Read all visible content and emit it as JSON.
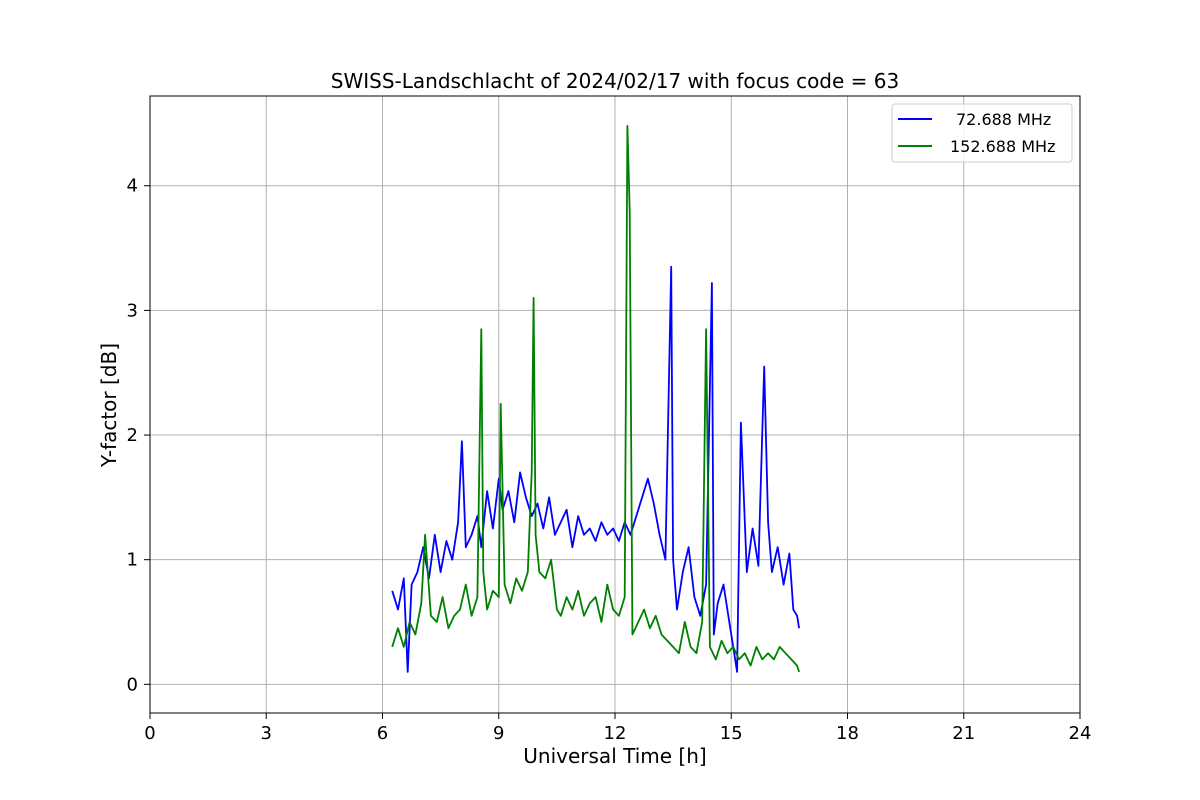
{
  "chart_data": {
    "type": "line",
    "title": "SWISS-Landschlacht of 2024/02/17 with focus code = 63",
    "xlabel": "Universal Time [h]",
    "ylabel": "Y-factor [dB]",
    "xlim": [
      0,
      24
    ],
    "ylim": [
      -0.23,
      4.72
    ],
    "x_ticks": [
      0,
      3,
      6,
      9,
      12,
      15,
      18,
      21,
      24
    ],
    "y_ticks": [
      0,
      1,
      2,
      3,
      4
    ],
    "grid": true,
    "legend_position": "top-right",
    "series": [
      {
        "name": "72.688 MHz",
        "color": "#0000ff",
        "x": [
          6.25,
          6.4,
          6.55,
          6.65,
          6.75,
          6.9,
          7.05,
          7.2,
          7.35,
          7.5,
          7.65,
          7.8,
          7.95,
          8.05,
          8.15,
          8.3,
          8.45,
          8.55,
          8.7,
          8.85,
          9.0,
          9.1,
          9.25,
          9.4,
          9.55,
          9.7,
          9.85,
          10.0,
          10.15,
          10.3,
          10.45,
          10.6,
          10.75,
          10.9,
          11.05,
          11.2,
          11.35,
          11.5,
          11.65,
          11.8,
          11.95,
          12.1,
          12.25,
          12.4,
          12.55,
          12.7,
          12.85,
          13.0,
          13.15,
          13.3,
          13.45,
          13.5,
          13.6,
          13.75,
          13.9,
          14.05,
          14.2,
          14.35,
          14.5,
          14.55,
          14.65,
          14.8,
          14.95,
          15.05,
          15.15,
          15.25,
          15.4,
          15.55,
          15.7,
          15.85,
          15.95,
          16.05,
          16.2,
          16.35,
          16.5,
          16.6,
          16.7,
          16.75
        ],
        "y": [
          0.75,
          0.6,
          0.85,
          0.1,
          0.8,
          0.9,
          1.1,
          0.85,
          1.2,
          0.9,
          1.15,
          1.0,
          1.3,
          1.95,
          1.1,
          1.2,
          1.35,
          1.1,
          1.55,
          1.25,
          1.65,
          1.4,
          1.55,
          1.3,
          1.7,
          1.5,
          1.35,
          1.45,
          1.25,
          1.5,
          1.2,
          1.3,
          1.4,
          1.1,
          1.35,
          1.2,
          1.25,
          1.15,
          1.3,
          1.2,
          1.25,
          1.15,
          1.3,
          1.2,
          1.35,
          1.5,
          1.65,
          1.45,
          1.2,
          1.0,
          3.35,
          1.0,
          0.6,
          0.9,
          1.1,
          0.7,
          0.55,
          0.8,
          3.22,
          0.4,
          0.65,
          0.8,
          0.5,
          0.3,
          0.1,
          2.1,
          0.9,
          1.25,
          0.95,
          2.55,
          1.3,
          0.9,
          1.1,
          0.8,
          1.05,
          0.6,
          0.55,
          0.45
        ]
      },
      {
        "name": "152.688 MHz",
        "color": "#008000",
        "x": [
          6.25,
          6.4,
          6.55,
          6.7,
          6.85,
          7.0,
          7.1,
          7.25,
          7.4,
          7.55,
          7.7,
          7.85,
          8.0,
          8.15,
          8.3,
          8.45,
          8.55,
          8.6,
          8.7,
          8.85,
          9.0,
          9.05,
          9.15,
          9.3,
          9.45,
          9.6,
          9.75,
          9.85,
          9.9,
          9.95,
          10.05,
          10.2,
          10.35,
          10.5,
          10.6,
          10.75,
          10.9,
          11.05,
          11.2,
          11.35,
          11.5,
          11.65,
          11.8,
          11.95,
          12.1,
          12.25,
          12.32,
          12.38,
          12.45,
          12.6,
          12.75,
          12.9,
          13.05,
          13.2,
          13.35,
          13.5,
          13.65,
          13.8,
          13.95,
          14.1,
          14.25,
          14.35,
          14.45,
          14.6,
          14.75,
          14.9,
          15.05,
          15.2,
          15.35,
          15.5,
          15.65,
          15.8,
          15.95,
          16.1,
          16.25,
          16.4,
          16.55,
          16.7,
          16.75
        ],
        "y": [
          0.3,
          0.45,
          0.3,
          0.5,
          0.4,
          0.65,
          1.2,
          0.55,
          0.5,
          0.7,
          0.45,
          0.55,
          0.6,
          0.8,
          0.55,
          0.7,
          2.85,
          0.9,
          0.6,
          0.75,
          0.7,
          2.25,
          0.8,
          0.65,
          0.85,
          0.75,
          0.9,
          1.7,
          3.1,
          1.2,
          0.9,
          0.85,
          1.0,
          0.6,
          0.55,
          0.7,
          0.6,
          0.75,
          0.55,
          0.65,
          0.7,
          0.5,
          0.8,
          0.6,
          0.55,
          0.7,
          4.48,
          3.8,
          0.4,
          0.5,
          0.6,
          0.45,
          0.55,
          0.4,
          0.35,
          0.3,
          0.25,
          0.5,
          0.3,
          0.25,
          0.5,
          2.85,
          0.3,
          0.2,
          0.35,
          0.25,
          0.3,
          0.2,
          0.25,
          0.15,
          0.3,
          0.2,
          0.25,
          0.2,
          0.3,
          0.25,
          0.2,
          0.15,
          0.1
        ]
      }
    ]
  }
}
